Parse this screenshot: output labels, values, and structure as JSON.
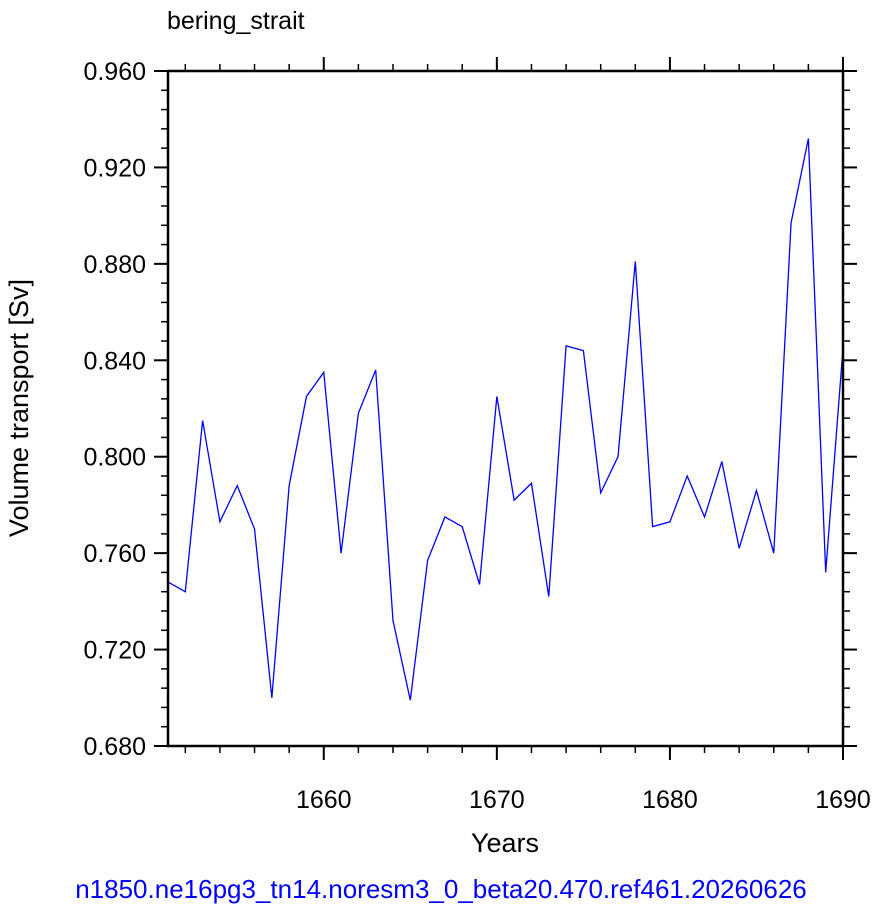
{
  "chart_data": {
    "type": "line",
    "title": "bering_strait",
    "xlabel": "Years",
    "ylabel": "Volume transport [Sv]",
    "xlim": [
      1651,
      1690
    ],
    "ylim": [
      0.68,
      0.96
    ],
    "x_ticks": [
      "1660",
      "1670",
      "1680",
      "1690"
    ],
    "y_ticks": [
      "0.680",
      "0.720",
      "0.760",
      "0.800",
      "0.840",
      "0.880",
      "0.920",
      "0.960"
    ],
    "grid": false,
    "series": [
      {
        "color": "#0000ff",
        "x": [
          1651,
          1652,
          1653,
          1654,
          1655,
          1656,
          1657,
          1658,
          1659,
          1660,
          1661,
          1662,
          1663,
          1664,
          1665,
          1666,
          1667,
          1668,
          1669,
          1670,
          1671,
          1672,
          1673,
          1674,
          1675,
          1676,
          1677,
          1678,
          1679,
          1680,
          1681,
          1682,
          1683,
          1684,
          1685,
          1686,
          1687,
          1688,
          1689,
          1690
        ],
        "values": [
          0.748,
          0.744,
          0.815,
          0.773,
          0.788,
          0.77,
          0.7,
          0.788,
          0.825,
          0.835,
          0.76,
          0.818,
          0.836,
          0.732,
          0.699,
          0.757,
          0.775,
          0.771,
          0.747,
          0.825,
          0.782,
          0.789,
          0.742,
          0.846,
          0.844,
          0.785,
          0.8,
          0.881,
          0.771,
          0.773,
          0.792,
          0.775,
          0.798,
          0.762,
          0.786,
          0.76,
          0.897,
          0.932,
          0.752,
          0.845
        ]
      }
    ]
  },
  "footer": "n1850.ne16pg3_tn14.noresm3_0_beta20.470.ref461.20260626"
}
